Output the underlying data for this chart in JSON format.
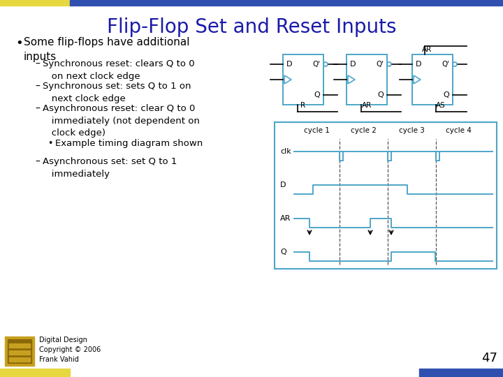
{
  "title": "Flip-Flop Set and Reset Inputs",
  "title_color": "#1a1aaa",
  "title_fontsize": 20,
  "bg_color": "#ffffff",
  "diagram_color": "#4da6c8",
  "header_yellow": "#e8d840",
  "header_blue": "#3050b0",
  "footer_yellow": "#e8d840",
  "footer_blue": "#3050b0",
  "page_number": "47",
  "footer_text": "Digital Design\nCopyright © 2006\nFrank Vahid"
}
